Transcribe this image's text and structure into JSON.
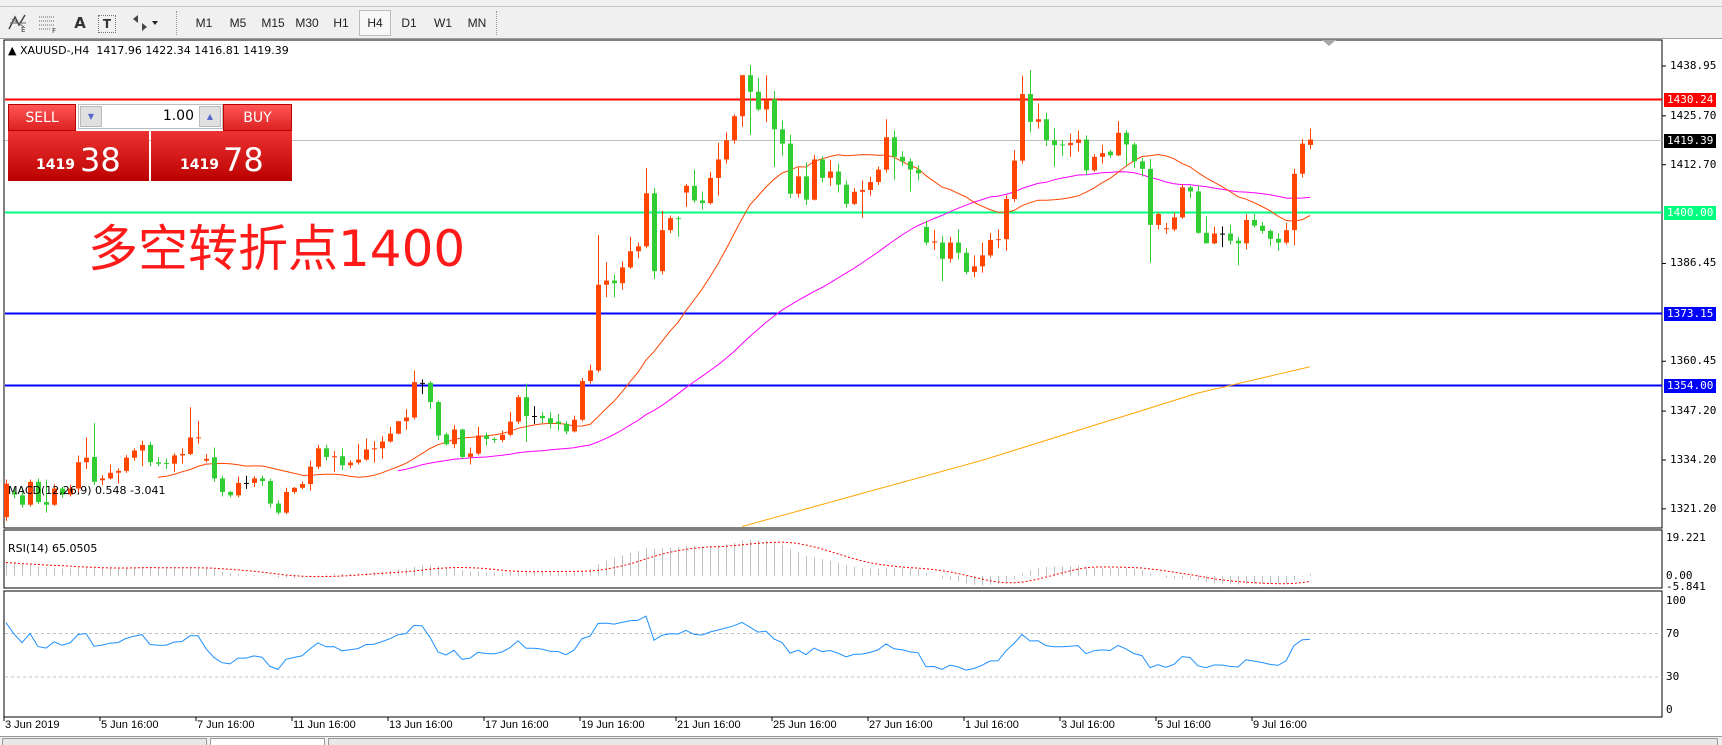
{
  "toolbar": {
    "tools": [
      {
        "icon": "elliott-wave-icon"
      },
      {
        "icon": "fibonacci-icon"
      },
      {
        "icon": "text-icon",
        "label": "A"
      },
      {
        "icon": "text-label-icon",
        "label": "T"
      },
      {
        "icon": "arrows-dropdown-icon"
      }
    ],
    "timeframes": [
      "M1",
      "M5",
      "M15",
      "M30",
      "H1",
      "H4",
      "D1",
      "W1",
      "MN"
    ],
    "active_timeframe": "H4"
  },
  "chart": {
    "symbol_header": "XAUUSD-,H4",
    "ohlc_header": "1417.96 1422.34 1416.81 1419.39",
    "annotation": "多空转折点1400",
    "colors": {
      "up": "#ff4500",
      "down": "#32cd32",
      "doji": "#000000",
      "ma_fast": "#ff4500",
      "ma_mid": "#ff00ff",
      "ma_slow": "#ffa500",
      "macd_hist": "#c0c0c0",
      "macd_signal": "#ff0000",
      "rsi": "#1e90ff"
    }
  },
  "trade_panel": {
    "sell_label": "SELL",
    "buy_label": "BUY",
    "lot": "1.00",
    "sell_big": "1419",
    "sell_pips": "38",
    "buy_big": "1419",
    "buy_pips": "78"
  },
  "chart_data": {
    "type": "candlestick",
    "price_ticks": [
      "1438.95",
      "1425.70",
      "1412.70",
      "1386.45",
      "1360.45",
      "1347.20",
      "1334.20",
      "1321.20"
    ],
    "horizontal_lines": [
      {
        "value": 1430.24,
        "label": "1430.24",
        "color": "#ff0000"
      },
      {
        "value": 1419.39,
        "label": "1419.39",
        "color": "#000000",
        "line_color": "#c0c0c0"
      },
      {
        "value": 1400.0,
        "label": "1400.00",
        "color": "#00ff7f"
      },
      {
        "value": 1373.15,
        "label": "1373.15",
        "color": "#0000ff"
      },
      {
        "value": 1354.0,
        "label": "1354.00",
        "color": "#0000ff"
      }
    ],
    "date_labels": [
      "3 Jun 2019",
      "5 Jun 16:00",
      "7 Jun 16:00",
      "11 Jun 16:00",
      "13 Jun 16:00",
      "17 Jun 16:00",
      "19 Jun 16:00",
      "21 Jun 16:00",
      "25 Jun 16:00",
      "27 Jun 16:00",
      "1 Jul 16:00",
      "3 Jul 16:00",
      "5 Jul 16:00",
      "9 Jul 16:00"
    ],
    "ma_slow": [
      [
        92,
        1316.5
      ],
      [
        122,
        1334.1
      ],
      [
        149,
        1352.0
      ],
      [
        163,
        1359.0
      ]
    ],
    "macd": {
      "label": "MACD(12,26,9) 0.548 -3.041",
      "ticks": [
        "19.221",
        "0.00",
        "-5.841"
      ]
    },
    "rsi": {
      "label": "RSI(14) 65.0505",
      "ticks": [
        "100",
        "70",
        "30",
        "0"
      ]
    },
    "ohlc": [
      [
        1319,
        1329,
        1318,
        1327.9
      ],
      [
        1325.5,
        1326.5,
        1324,
        1325
      ],
      [
        1324.8,
        1326.4,
        1321.5,
        1322.3
      ],
      [
        1322.3,
        1329,
        1321.8,
        1328.4
      ],
      [
        1328.4,
        1329.2,
        1322.5,
        1323
      ],
      [
        1323,
        1329,
        1320.2,
        1322.3
      ],
      [
        1322.3,
        1327.8,
        1322,
        1326.6
      ],
      [
        1326.6,
        1327,
        1324.2,
        1325
      ],
      [
        1325,
        1327.6,
        1324.5,
        1326.6
      ],
      [
        1326.6,
        1335.4,
        1325.6,
        1333.6
      ],
      [
        1333.6,
        1340.2,
        1331.8,
        1334.8
      ],
      [
        1335,
        1344,
        1327.5,
        1328.4
      ],
      [
        1328.8,
        1330.2,
        1327.5,
        1329.3
      ],
      [
        1329.3,
        1333,
        1329,
        1330.8
      ],
      [
        1330.8,
        1332,
        1327.9,
        1331.3
      ],
      [
        1331.3,
        1335.5,
        1330.8,
        1334.8
      ],
      [
        1334.8,
        1337.3,
        1334,
        1336.7
      ],
      [
        1336.7,
        1339.3,
        1332.5,
        1338.2
      ],
      [
        1338.2,
        1339,
        1332.5,
        1333.6
      ],
      [
        1333.6,
        1335,
        1332.5,
        1333.2
      ],
      [
        1333.4,
        1334.6,
        1331.8,
        1333.2
      ],
      [
        1333.2,
        1336,
        1331,
        1335.4
      ],
      [
        1335.4,
        1337.3,
        1333.2,
        1335.8
      ],
      [
        1335.8,
        1348.2,
        1335.5,
        1340.2
      ],
      [
        1340.1,
        1344.6,
        1338.5,
        1340.2
      ],
      [
        1334,
        1335.8,
        1333.6,
        1334.5
      ],
      [
        1334.9,
        1337.5,
        1328.4,
        1329.3
      ],
      [
        1329.3,
        1330,
        1324.5,
        1325.7
      ],
      [
        1325.7,
        1326,
        1324.3,
        1324.8
      ],
      [
        1324.8,
        1329.8,
        1324.3,
        1328.1
      ],
      [
        1328.1,
        1330,
        1326.5,
        1328.1
      ],
      [
        1328.1,
        1329.9,
        1327,
        1329.3
      ],
      [
        1329.3,
        1330,
        1327.3,
        1328.6
      ],
      [
        1328.6,
        1329.2,
        1321.5,
        1322.6
      ],
      [
        1322.6,
        1323.5,
        1319.7,
        1320.2
      ],
      [
        1320.2,
        1326.8,
        1319.8,
        1325.7
      ],
      [
        1325.7,
        1327,
        1325.2,
        1326.8
      ],
      [
        1326.8,
        1328.5,
        1326.4,
        1327.8
      ],
      [
        1327.8,
        1334,
        1326,
        1332.4
      ],
      [
        1332.4,
        1338.2,
        1331.8,
        1337.3
      ],
      [
        1337.3,
        1338.2,
        1334,
        1335
      ],
      [
        1335,
        1336.6,
        1331,
        1335.2
      ],
      [
        1335.2,
        1337.3,
        1331.5,
        1332.8
      ],
      [
        1332.8,
        1334.1,
        1332,
        1333.5
      ],
      [
        1333.5,
        1338.5,
        1333,
        1334.3
      ],
      [
        1334.3,
        1339.9,
        1334,
        1337
      ],
      [
        1337,
        1339.2,
        1333.5,
        1337.3
      ],
      [
        1337.3,
        1340.5,
        1334.5,
        1339.1
      ],
      [
        1339.1,
        1343,
        1338.8,
        1341.2
      ],
      [
        1341.2,
        1344.6,
        1341,
        1344.5
      ],
      [
        1344.5,
        1347.7,
        1342.2,
        1345.5
      ],
      [
        1345.5,
        1358,
        1345,
        1354.9
      ],
      [
        1354.7,
        1355.6,
        1351.7,
        1354.7
      ],
      [
        1354.7,
        1355.2,
        1347.8,
        1349.6
      ],
      [
        1349.6,
        1350,
        1339.5,
        1340.7
      ],
      [
        1341,
        1341.5,
        1338,
        1338.4
      ],
      [
        1338.4,
        1343.5,
        1337.3,
        1342.3
      ],
      [
        1342.3,
        1342.5,
        1334.5,
        1335
      ],
      [
        1335,
        1337.5,
        1333,
        1335.9
      ],
      [
        1335.9,
        1343,
        1335.5,
        1340.7
      ],
      [
        1340.7,
        1341.5,
        1338,
        1339.8
      ],
      [
        1339.8,
        1340.2,
        1338.7,
        1339.5
      ],
      [
        1339.5,
        1342,
        1338.9,
        1340.9
      ],
      [
        1340.9,
        1347,
        1340.5,
        1344.4
      ],
      [
        1344.4,
        1351.5,
        1343.8,
        1350.9
      ],
      [
        1350.9,
        1354.5,
        1339,
        1345.9
      ],
      [
        1345.9,
        1348.5,
        1343.8,
        1345.9
      ],
      [
        1345.9,
        1347,
        1344,
        1345.3
      ],
      [
        1345.3,
        1347,
        1342.5,
        1343.9
      ],
      [
        1344.4,
        1346.5,
        1342,
        1343.8
      ],
      [
        1343.8,
        1344.5,
        1341,
        1341.8
      ],
      [
        1341.8,
        1346,
        1341.5,
        1344.9
      ],
      [
        1344.9,
        1356,
        1344.5,
        1355.2
      ],
      [
        1355.2,
        1359.5,
        1354.5,
        1358
      ],
      [
        1358,
        1394,
        1357.5,
        1380.8
      ],
      [
        1380.8,
        1386.8,
        1377.5,
        1381.9
      ],
      [
        1381.9,
        1383.5,
        1377.5,
        1381.2
      ],
      [
        1381.2,
        1387,
        1379.5,
        1385.4
      ],
      [
        1385.4,
        1393.5,
        1385,
        1389.7
      ],
      [
        1389.7,
        1392,
        1387.8,
        1391
      ],
      [
        1391,
        1411.8,
        1390.5,
        1405.1
      ],
      [
        1405.1,
        1406.5,
        1382.3,
        1384.4
      ],
      [
        1384.4,
        1400.4,
        1383.5,
        1395.3
      ],
      [
        1395.3,
        1399.2,
        1394.5,
        1398.5
      ],
      [
        1398.5,
        1399,
        1393.5,
        1398.3
      ],
      [
        1405.3,
        1407.6,
        1401.5,
        1407.1
      ],
      [
        1407.1,
        1411.4,
        1402.6,
        1403.2
      ],
      [
        1403.2,
        1405.5,
        1400.8,
        1402.5
      ],
      [
        1402.5,
        1410.8,
        1402.1,
        1409.2
      ],
      [
        1409.2,
        1418.5,
        1404.5,
        1414.1
      ],
      [
        1414.1,
        1421.3,
        1413,
        1419.2
      ],
      [
        1419.2,
        1426.1,
        1418.3,
        1425.6
      ],
      [
        1425.6,
        1436.6,
        1422.8,
        1436.5
      ],
      [
        1436.5,
        1439.2,
        1420.6,
        1432.1
      ],
      [
        1432.1,
        1435.8,
        1427,
        1427.4
      ],
      [
        1427.4,
        1436.5,
        1424,
        1429.9
      ],
      [
        1430.1,
        1432.3,
        1412.1,
        1422.1
      ],
      [
        1422.1,
        1424.5,
        1415.1,
        1418.3
      ],
      [
        1418.3,
        1420.7,
        1403.8,
        1405
      ],
      [
        1405,
        1412,
        1404,
        1409.6
      ],
      [
        1409.6,
        1413.3,
        1402,
        1403.4
      ],
      [
        1403.4,
        1415.3,
        1403.2,
        1414.1
      ],
      [
        1414.1,
        1415,
        1408,
        1409.2
      ],
      [
        1409.2,
        1414,
        1407,
        1410.9
      ],
      [
        1410.9,
        1413,
        1405.3,
        1407.4
      ],
      [
        1407.4,
        1408.5,
        1401.3,
        1402.3
      ],
      [
        1402.3,
        1406.5,
        1402,
        1405.5
      ],
      [
        1405.5,
        1408.5,
        1398.6,
        1406
      ],
      [
        1406,
        1409.5,
        1404.5,
        1408.1
      ],
      [
        1408.1,
        1412.2,
        1407.3,
        1411.4
      ],
      [
        1411.4,
        1424.8,
        1410.6,
        1420
      ],
      [
        1420,
        1421.8,
        1408.7,
        1414.8
      ],
      [
        1414.8,
        1416.3,
        1412.4,
        1413.6
      ],
      [
        1413.6,
        1414.4,
        1405.5,
        1411.4
      ],
      [
        1411.4,
        1412.6,
        1408.5,
        1410.4
      ],
      [
        1396.2,
        1397.8,
        1391.3,
        1392
      ],
      [
        1392,
        1395.3,
        1390,
        1392.3
      ],
      [
        1392,
        1393.8,
        1381.8,
        1387.7
      ],
      [
        1387.7,
        1393.5,
        1386.7,
        1392
      ],
      [
        1392,
        1395.5,
        1387.5,
        1389.3
      ],
      [
        1389.3,
        1390.5,
        1383.5,
        1384.2
      ],
      [
        1384.2,
        1388.6,
        1382.8,
        1385.7
      ],
      [
        1385.7,
        1392,
        1384,
        1388.6
      ],
      [
        1388.6,
        1394.5,
        1388,
        1392.7
      ],
      [
        1392.7,
        1395.5,
        1390.5,
        1392.9
      ],
      [
        1392.9,
        1404.6,
        1389.8,
        1403.6
      ],
      [
        1403.6,
        1416.6,
        1402.8,
        1413.8
      ],
      [
        1413.8,
        1436.4,
        1413,
        1431.5
      ],
      [
        1431.5,
        1437.9,
        1421.3,
        1424.1
      ],
      [
        1424.1,
        1429,
        1422.3,
        1424.8
      ],
      [
        1424.8,
        1426.5,
        1417.6,
        1419.2
      ],
      [
        1419.2,
        1422.5,
        1412.2,
        1417.9
      ],
      [
        1418.1,
        1419.3,
        1415,
        1417.9
      ],
      [
        1417.9,
        1421,
        1414.8,
        1418.5
      ],
      [
        1418.5,
        1421.8,
        1416.2,
        1419.4
      ],
      [
        1419.4,
        1420.5,
        1410,
        1411.2
      ],
      [
        1411.2,
        1415.5,
        1410.8,
        1414.8
      ],
      [
        1414.8,
        1418,
        1413,
        1415.8
      ],
      [
        1416.2,
        1416.6,
        1414.6,
        1415.2
      ],
      [
        1415.2,
        1424.3,
        1415,
        1421.2
      ],
      [
        1421.2,
        1421.9,
        1412.5,
        1418.1
      ],
      [
        1418.1,
        1418.6,
        1411.8,
        1413.6
      ],
      [
        1413.6,
        1414.5,
        1409.5,
        1411.6
      ],
      [
        1411.6,
        1414.2,
        1386.6,
        1396.7
      ],
      [
        1396.7,
        1400,
        1395.5,
        1399.6
      ],
      [
        1395.6,
        1397.2,
        1394.3,
        1395.8
      ],
      [
        1395.5,
        1400,
        1395,
        1398.7
      ],
      [
        1398.7,
        1407.5,
        1398.3,
        1406.7
      ],
      [
        1406.7,
        1407.1,
        1403.8,
        1405.6
      ],
      [
        1405.6,
        1407.1,
        1394.3,
        1394.6
      ],
      [
        1394.6,
        1399,
        1391.8,
        1391.8
      ],
      [
        1391.8,
        1396.2,
        1391.6,
        1394.4
      ],
      [
        1394.4,
        1396.3,
        1390.8,
        1394.4
      ],
      [
        1394.4,
        1396.7,
        1391.5,
        1392.5
      ],
      [
        1392.5,
        1393.5,
        1386,
        1391.8
      ],
      [
        1391.8,
        1399.6,
        1390.2,
        1398
      ],
      [
        1398,
        1399.6,
        1396,
        1396.5
      ],
      [
        1396.5,
        1397.5,
        1394.4,
        1395.1
      ],
      [
        1395.1,
        1395.5,
        1391.1,
        1393
      ],
      [
        1393,
        1394.5,
        1389.8,
        1392
      ],
      [
        1392,
        1397.2,
        1391.5,
        1395.3
      ],
      [
        1395.3,
        1411.6,
        1391.3,
        1410.3
      ],
      [
        1410.3,
        1419.5,
        1409.3,
        1418.3
      ],
      [
        1417.96,
        1422.34,
        1416.81,
        1419.39
      ]
    ]
  }
}
